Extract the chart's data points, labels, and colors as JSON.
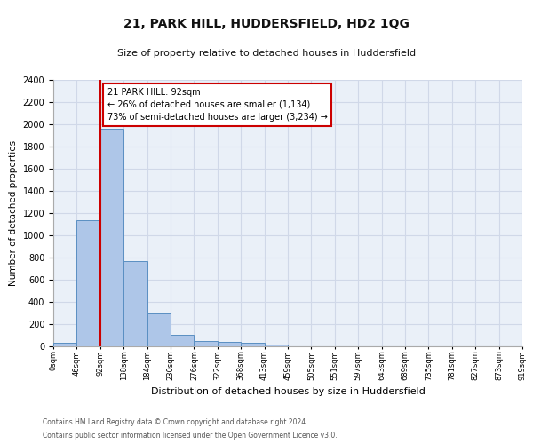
{
  "title": "21, PARK HILL, HUDDERSFIELD, HD2 1QG",
  "subtitle": "Size of property relative to detached houses in Huddersfield",
  "xlabel": "Distribution of detached houses by size in Huddersfield",
  "ylabel": "Number of detached properties",
  "footer_line1": "Contains HM Land Registry data © Crown copyright and database right 2024.",
  "footer_line2": "Contains public sector information licensed under the Open Government Licence v3.0.",
  "bar_heights": [
    35,
    1140,
    1960,
    770,
    300,
    105,
    48,
    40,
    32,
    20,
    0,
    0,
    0,
    0,
    0,
    0,
    0,
    0,
    0,
    0
  ],
  "bar_color": "#aec6e8",
  "bar_edgecolor": "#5a8fc2",
  "marker_bin": 2,
  "marker_color": "#cc0000",
  "ylim": [
    0,
    2400
  ],
  "yticks": [
    0,
    200,
    400,
    600,
    800,
    1000,
    1200,
    1400,
    1600,
    1800,
    2000,
    2200,
    2400
  ],
  "xtick_labels": [
    "0sqm",
    "46sqm",
    "92sqm",
    "138sqm",
    "184sqm",
    "230sqm",
    "276sqm",
    "322sqm",
    "368sqm",
    "413sqm",
    "459sqm",
    "505sqm",
    "551sqm",
    "597sqm",
    "643sqm",
    "689sqm",
    "735sqm",
    "781sqm",
    "827sqm",
    "873sqm",
    "919sqm"
  ],
  "annotation_text": "21 PARK HILL: 92sqm\n← 26% of detached houses are smaller (1,134)\n73% of semi-detached houses are larger (3,234) →",
  "annotation_box_color": "#ffffff",
  "annotation_box_edgecolor": "#cc0000",
  "grid_color": "#d0d8e8",
  "bg_color": "#eaf0f8",
  "title_fontsize": 10,
  "subtitle_fontsize": 8,
  "ylabel_fontsize": 7.5,
  "xlabel_fontsize": 8,
  "ytick_fontsize": 7,
  "xtick_fontsize": 6,
  "annotation_fontsize": 7
}
